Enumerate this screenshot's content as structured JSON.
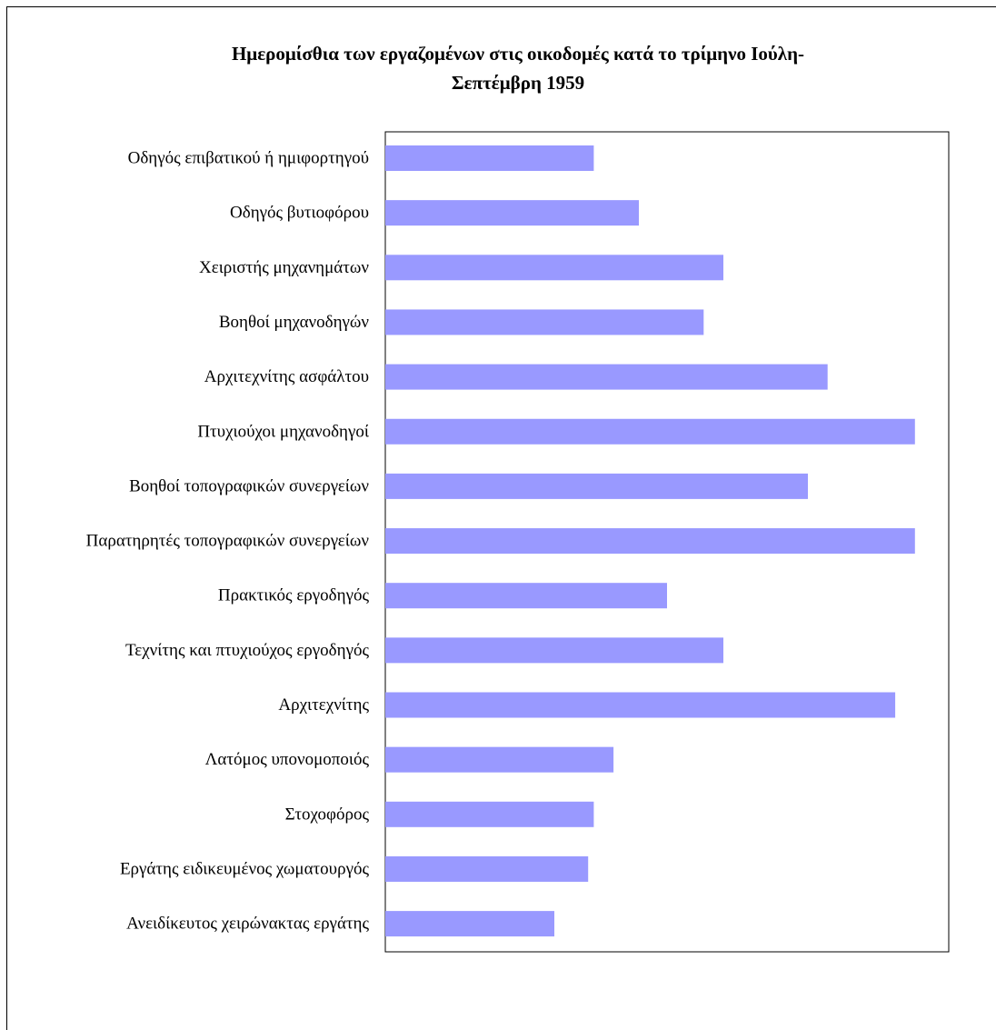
{
  "chart_data": {
    "type": "bar",
    "orientation": "horizontal",
    "title": "Ημερομίσθια των εργαζομένων στις οικοδομές κατά το τρίμηνο Ιούλη-Σεπτέμβρη 1959",
    "title_lines": [
      "Ημερομίσθια των εργαζομένων στις οικοδομές κατά το τρίμηνο Ιούλη-",
      "Σεπτέμβρη 1959"
    ],
    "xlabel": "",
    "ylabel": "",
    "categories": [
      "Οδηγός επιβατικού ή ημιφορτηγού",
      "Οδηγός βυτιοφόρου",
      "Χειριστής μηχανημάτων",
      "Βοηθοί μηχανοδηγών",
      "Αρχιτεχνίτης ασφάλτου",
      "Πτυχιούχοι μηχανοδηγοί",
      "Βοηθοί τοπογραφικών συνεργείων",
      "Παρατηρητές τοπογραφικών συνεργείων",
      "Πρακτικός εργοδηγός",
      "Τεχνίτης και πτυχιούχος εργοδηγός",
      "Αρχιτεχνίτης",
      "Λατόμος υπονομοποιός",
      "Στοχοφόρος",
      "Εργάτης ειδικευμένος χωματουργός",
      "Ανειδίκευτος χειρώνακτας εργάτης"
    ],
    "values": [
      37,
      45,
      60,
      56.5,
      78.5,
      94,
      75,
      94,
      50,
      60,
      90.5,
      40.5,
      37,
      36,
      30
    ],
    "xlim": [
      0,
      100
    ],
    "grid": false,
    "legend": "none",
    "bar_color": "#9999ff"
  }
}
